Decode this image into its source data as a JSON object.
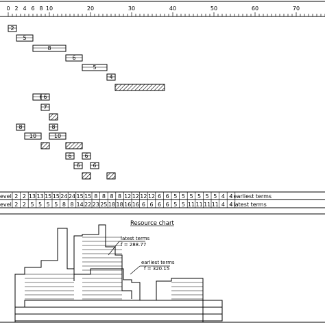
{
  "chart_data": {
    "type": "gantt-resource",
    "axis": {
      "min": 0,
      "max": 77,
      "labeled_ticks": [
        0,
        2,
        4,
        6,
        8,
        10,
        20,
        30,
        40,
        50,
        60,
        70
      ],
      "minor_step": 1
    },
    "tasks": [
      {
        "start": 0,
        "end": 2,
        "duration_label": "2",
        "fill": "none"
      },
      {
        "start": 2,
        "end": 6,
        "duration_label": "5",
        "fill": "none"
      },
      {
        "start": 6,
        "end": 14,
        "duration_label": "8",
        "fill": "none"
      },
      {
        "start": 14,
        "end": 18,
        "duration_label": "6",
        "fill": "none"
      },
      {
        "start": 18,
        "end": 24,
        "duration_label": "5",
        "fill": "none"
      },
      {
        "start": 24,
        "end": 26,
        "duration_label": "4",
        "fill": "none"
      },
      {
        "start": 26,
        "end": 38,
        "duration_label": "",
        "fill": "hatch"
      },
      {
        "start": 6,
        "end": 10,
        "duration_label": "6",
        "fill": "none"
      },
      {
        "start": 8,
        "end": 10,
        "duration_label": "6",
        "fill": "none"
      },
      {
        "start": 8,
        "end": 10,
        "duration_label": "7",
        "fill": "none"
      },
      {
        "start": 10,
        "end": 12,
        "duration_label": "",
        "fill": "hatch"
      },
      {
        "start": 2,
        "end": 4,
        "duration_label": "8",
        "fill": "none"
      },
      {
        "start": 10,
        "end": 12,
        "duration_label": "8",
        "fill": "none"
      },
      {
        "start": 4,
        "end": 8,
        "duration_label": "10",
        "fill": "none"
      },
      {
        "start": 10,
        "end": 14,
        "duration_label": "10",
        "fill": "none"
      },
      {
        "start": 8,
        "end": 10,
        "duration_label": "",
        "fill": "hatch"
      },
      {
        "start": 14,
        "end": 18,
        "duration_label": "",
        "fill": "hatch"
      },
      {
        "start": 14,
        "end": 16,
        "duration_label": "6",
        "fill": "none"
      },
      {
        "start": 18,
        "end": 20,
        "duration_label": "6",
        "fill": "none"
      },
      {
        "start": 16,
        "end": 18,
        "duration_label": "6",
        "fill": "none"
      },
      {
        "start": 20,
        "end": 22,
        "duration_label": "6",
        "fill": "none"
      },
      {
        "start": 18,
        "end": 20,
        "duration_label": "",
        "fill": "hatch"
      },
      {
        "start": 24,
        "end": 26,
        "duration_label": "",
        "fill": "hatch"
      }
    ],
    "level_rows": [
      {
        "label_prefix": "evel",
        "values": [
          2,
          2,
          13,
          13,
          15,
          15,
          24,
          24,
          15,
          15,
          8,
          8,
          8,
          8,
          12,
          12,
          12,
          12,
          6,
          6,
          5,
          5,
          5,
          5,
          5,
          5,
          4,
          4
        ],
        "legend": "– earliest terms"
      },
      {
        "label_prefix": "evel",
        "values": [
          2,
          2,
          5,
          5,
          5,
          5,
          8,
          8,
          14,
          22,
          23,
          25,
          18,
          18,
          16,
          16,
          6,
          6,
          6,
          6,
          5,
          5,
          11,
          11,
          11,
          11,
          4,
          4
        ],
        "legend": "– latest terms"
      }
    ],
    "resource_chart": {
      "title": "Resource chart",
      "annotations": [
        {
          "text1": "latest terms",
          "text2": "f = 288.77"
        },
        {
          "text1": "earliest terms",
          "text2": "f = 320.15"
        }
      ]
    }
  },
  "colors": {
    "line": "#000000",
    "background": "#ffffff"
  }
}
